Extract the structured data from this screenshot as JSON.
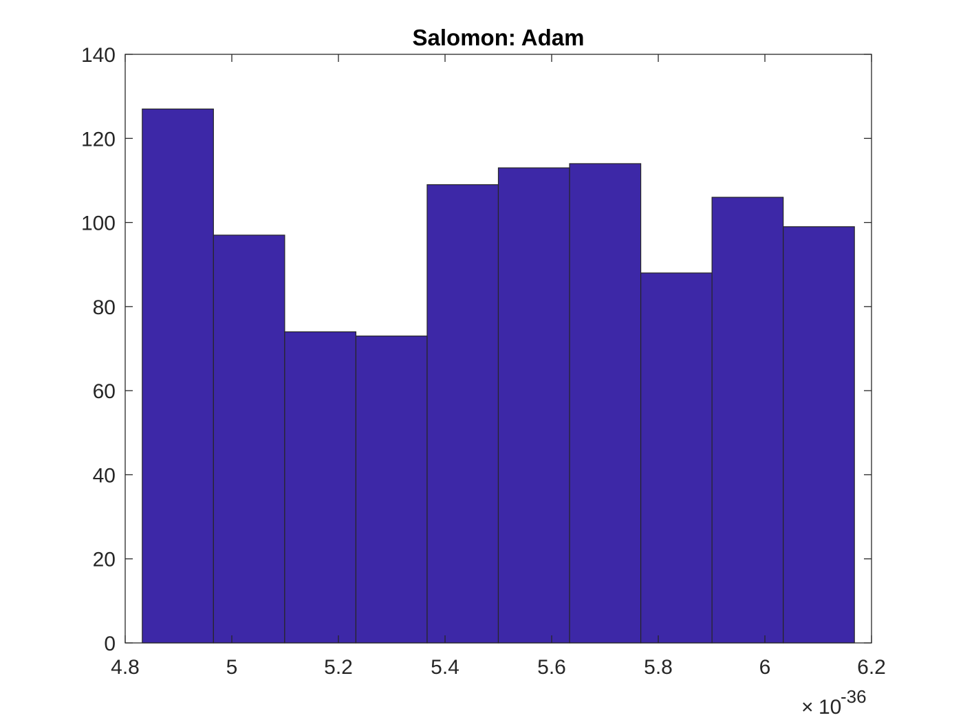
{
  "chart_data": {
    "type": "bar",
    "subtype": "histogram",
    "title": "Salomon: Adam",
    "xlabel": "",
    "ylabel": "",
    "x_multiplier": {
      "base": "10",
      "exponent": "-36"
    },
    "bin_edges": [
      4.832,
      4.9656,
      5.0992,
      5.2328,
      5.3664,
      5.5,
      5.6336,
      5.7672,
      5.9008,
      6.0344,
      6.168
    ],
    "values": [
      127,
      97,
      74,
      73,
      109,
      113,
      114,
      88,
      106,
      99
    ],
    "xlim": [
      4.8,
      6.2
    ],
    "ylim": [
      0,
      140
    ],
    "xticks": [
      4.8,
      5.0,
      5.2,
      5.4,
      5.6,
      5.8,
      6.0,
      6.2
    ],
    "xtick_labels": [
      "4.8",
      "5",
      "5.2",
      "5.4",
      "5.6",
      "5.8",
      "6",
      "6.2"
    ],
    "yticks": [
      0,
      20,
      40,
      60,
      80,
      100,
      120,
      140
    ],
    "ytick_labels": [
      "0",
      "20",
      "40",
      "60",
      "80",
      "100",
      "120",
      "140"
    ],
    "grid": false,
    "legend": "none",
    "colors": {
      "bar_fill": "#3d28a7",
      "bar_edge": "#262626",
      "axes": "#262626"
    }
  }
}
